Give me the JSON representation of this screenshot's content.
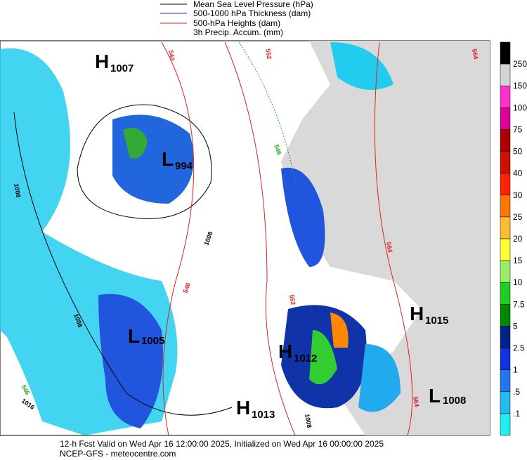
{
  "legend": [
    "Mean Sea Level Pressure (hPa)",
    "500-1000 hPa Thickness (dam)",
    "500-hPa Heights (dam)",
    "3h Precip. Accum. (mm)"
  ],
  "colorbar": {
    "labels": [
      "250",
      "150",
      "100",
      "75",
      "50",
      "40",
      "30",
      "25",
      "20",
      "15",
      "10",
      "7.5",
      "5",
      "2.5",
      "1",
      ".5",
      ".1"
    ]
  },
  "centers": [
    {
      "letter": "H",
      "value": "1007"
    },
    {
      "letter": "L",
      "value": "994"
    },
    {
      "letter": "L",
      "value": "1005"
    },
    {
      "letter": "H",
      "value": "1012"
    },
    {
      "letter": "H",
      "value": "1013"
    },
    {
      "letter": "H",
      "value": "1015"
    },
    {
      "letter": "L",
      "value": "1008"
    }
  ],
  "contour_labels": [
    "1008",
    "1008",
    "1016",
    "546",
    "540",
    "546",
    "552",
    "564",
    "564",
    "1008",
    "546",
    "552",
    "564",
    "1008"
  ],
  "footer": [
    "12-h Fcst Valid on Wed Apr 16 12:00:00 2025, Initialized on Wed Apr 16 00:00:00 2025",
    "NCEP-GFS  - meteocentre.com"
  ]
}
